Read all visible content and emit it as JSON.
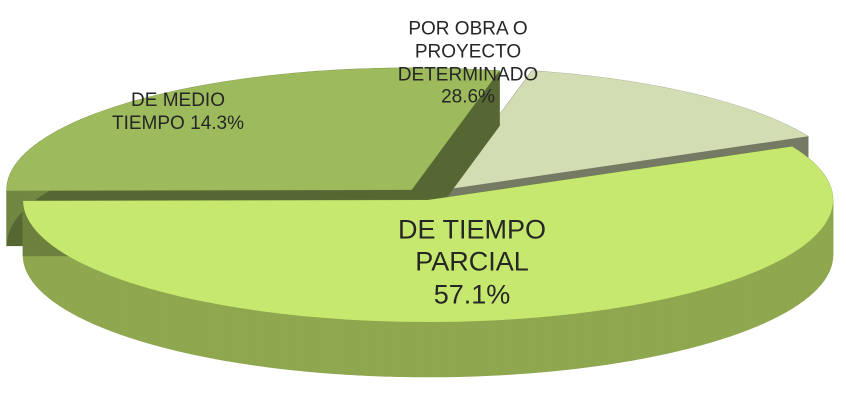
{
  "chart_data": {
    "type": "pie",
    "categories": [
      "DE TIEMPO PARCIAL",
      "POR OBRA O PROYECTO DETERMINADO",
      "DE MEDIO TIEMPO"
    ],
    "values": [
      57.1,
      28.6,
      14.3
    ],
    "value_labels": [
      "57.1%",
      "28.6%",
      "14.3%"
    ],
    "colors": [
      "#c6e86e",
      "#9dbb5c",
      "#d3ddb4"
    ]
  }
}
